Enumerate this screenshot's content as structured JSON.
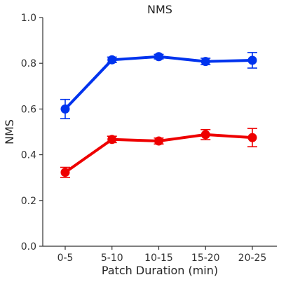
{
  "chart_data": {
    "type": "line",
    "title": "NMS",
    "xlabel": "Patch Duration (min)",
    "ylabel": "NMS",
    "categories": [
      "0-5",
      "5-10",
      "10-15",
      "15-20",
      "20-25"
    ],
    "ylim": [
      0.0,
      1.0
    ],
    "yticks": [
      "0.0",
      "0.2",
      "0.4",
      "0.6",
      "0.8",
      "1.0"
    ],
    "grid": false,
    "series": [
      {
        "color": "#0033ee",
        "values": [
          0.6,
          0.815,
          0.829,
          0.808,
          0.813
        ],
        "error": [
          0.042,
          0.012,
          0.01,
          0.014,
          0.034
        ]
      },
      {
        "color": "#ee0000",
        "values": [
          0.323,
          0.467,
          0.46,
          0.488,
          0.475
        ],
        "error": [
          0.022,
          0.014,
          0.013,
          0.022,
          0.04
        ]
      }
    ]
  }
}
